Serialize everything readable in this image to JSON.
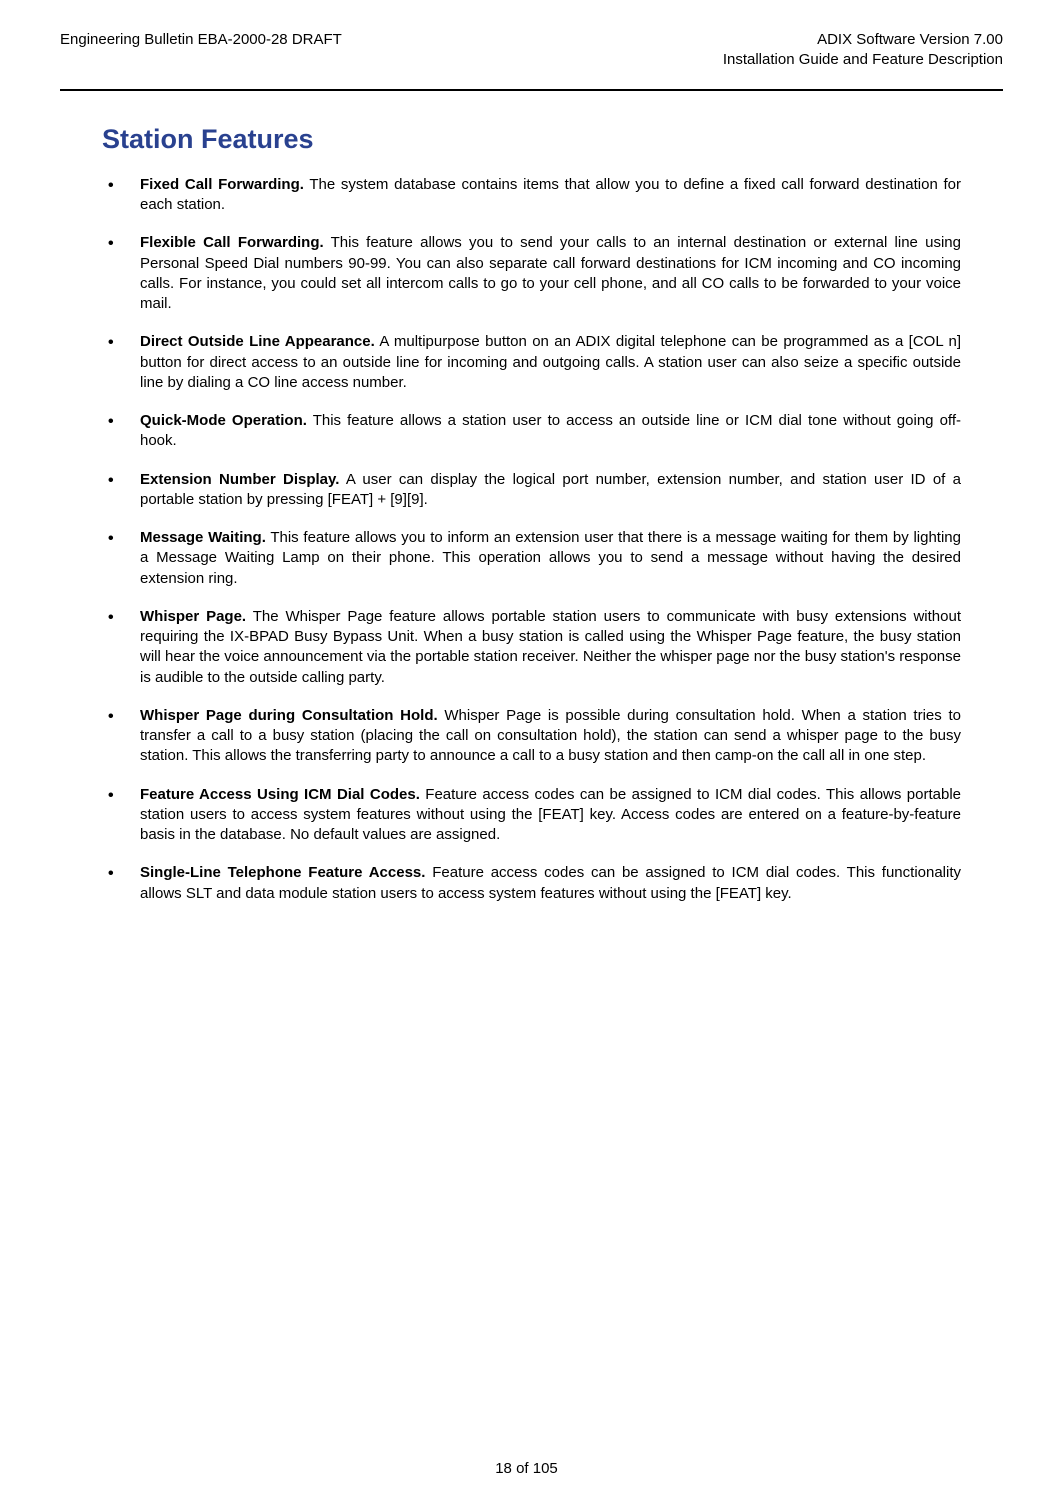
{
  "header": {
    "left": "Engineering Bulletin EBA-2000-28 DRAFT",
    "right_line1": "ADIX Software Version 7.00",
    "right_line2": "Installation Guide and Feature Description"
  },
  "title": "Station Features",
  "items": [
    {
      "term": "Fixed Call Forwarding.",
      "desc": "  The system database contains items that allow you to define a fixed call forward destination for each station."
    },
    {
      "term": "Flexible Call Forwarding.",
      "desc": "  This feature allows you to send your calls to an internal destination or external line using Personal Speed Dial numbers 90-99. You can also separate call forward destinations for ICM incoming and CO incoming calls. For instance, you could set all intercom calls to go to your cell phone, and all CO calls to be forwarded to your voice mail."
    },
    {
      "term": "Direct Outside Line Appearance.",
      "desc": "  A multipurpose button on an ADIX digital telephone can be programmed as a [COL n] button  for direct access to an outside line for incoming and outgoing calls. A station user can also seize a specific outside line by dialing a CO line access number."
    },
    {
      "term": "Quick-Mode Operation.",
      "desc": "  This feature allows a station user to access an outside line or ICM dial tone without going off-hook."
    },
    {
      "term": "Extension Number Display.",
      "desc": "  A user can display the logical port number, extension number, and station user ID of a portable station by pressing [FEAT] + [9][9]."
    },
    {
      "term": "Message Waiting.",
      "desc": "  This feature allows you to inform an extension user that there is a message waiting for them by lighting a Message Waiting Lamp on their phone.  This operation allows you to send a message without having the desired extension ring."
    },
    {
      "term": "Whisper Page.",
      "desc": "  The Whisper Page feature allows portable station users to communicate with busy extensions without requiring the IX-BPAD Busy Bypass Unit.  When a busy station is called using the Whisper Page feature, the busy station will hear the voice announcement via the portable station receiver. Neither the whisper page nor the busy station's response is audible to the outside calling party."
    },
    {
      "term": "Whisper Page during Consultation Hold.",
      "desc": "  Whisper Page is possible during consultation hold. When a station tries to transfer a call to a busy station (placing the call on consultation hold), the station can send a whisper page to the busy station. This allows the transferring party to announce a call to a busy station and then camp-on the call all in one step."
    },
    {
      "term": "Feature Access Using ICM Dial Codes.",
      "desc": "  Feature access codes can be assigned to ICM dial codes. This allows portable station users to access system features without using the [FEAT] key. Access codes are entered on a feature-by-feature basis in the database. No default values are assigned."
    },
    {
      "term": "Single-Line Telephone Feature Access.",
      "desc": "  Feature access codes can be assigned to ICM dial codes. This functionality allows SLT and data module station users to access system features without using the [FEAT] key."
    }
  ],
  "footer": "18 of 105"
}
